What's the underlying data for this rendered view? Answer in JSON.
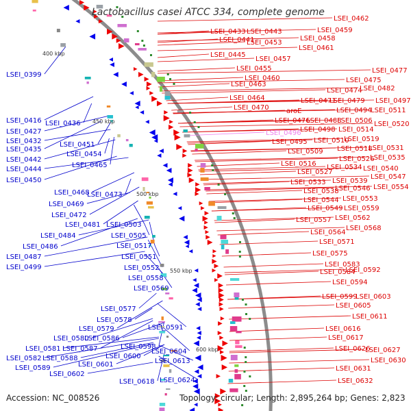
{
  "title": "Lactobacillus casei ATCC 334, complete genome",
  "footer": {
    "accession": "Accession: NC_008526",
    "stats": "Topology: circular; Length: 2,895,264 bp; Genes: 2,823"
  },
  "colors": {
    "right_label": "#dd0000",
    "left_label": "#0000cc",
    "highlight_label": "#ee82ee",
    "backbone": "#8c8c8c",
    "forward_feature": "#ee0000",
    "reverse_feature": "#0000ee"
  },
  "scale_labels": [
    "400 kbp",
    "450 kbp",
    "500 kbp",
    "550 kbp",
    "600 kbp"
  ],
  "right_labels": [
    "LSEI_0462",
    "LSEI_0433",
    "LSEI_0443",
    "LSEI_0459",
    "LSEI_0441",
    "LSEI_0453",
    "LSEI_0458",
    "LSEI_0461",
    "LSEI_0445",
    "LSEI_0457",
    "LSEI_0455",
    "LSEI_0460",
    "LSEI_0463",
    "LSEI_0464",
    "LSEI_0477",
    "LSEI_0475",
    "LSEI_0474",
    "LSEI_0482",
    "LSEI_0471",
    "LSEI_0479",
    "LSEI_0497",
    "LSEI_0470",
    "LSEI_0494",
    "LSEI_0511",
    "aroE",
    "LSEI_0476",
    "LSEI_0488",
    "LSEI_0506",
    "LSEI_0520",
    "LSEI_0496",
    "LSEI_0498",
    "LSEI_0514",
    "LSEI_0519",
    "LSEI_0510",
    "LSEI_0495",
    "LSEI_0518",
    "LSEI_0531",
    "LSEI_0509",
    "LSEI_0526",
    "LSEI_0535",
    "LSEI_0516",
    "LSEI_0534",
    "LSEI_0540",
    "LSEI_0527",
    "LSEI_0547",
    "LSEI_0533",
    "LSEI_0539",
    "LSEI_0554",
    "LSEI_0538",
    "LSEI_0546",
    "LSEI_0544",
    "LSEI_0553",
    "LSEI_0549",
    "LSEI_0559",
    "LSEI_0562",
    "LSEI_0557",
    "LSEI_0568",
    "LSEI_0564",
    "LSEI_0571",
    "LSEI_0575",
    "LSEI_0583",
    "LSEI_0584",
    "LSEI_0592",
    "LSEI_0594",
    "LSEI_0599",
    "LSEI_0603",
    "LSEI_0605",
    "LSEI_0611",
    "LSEI_0616",
    "LSEI_0617",
    "LSEI_0626",
    "LSEI_0627",
    "LSEI_0630",
    "LSEI_0631",
    "LSEI_0632"
  ],
  "highlighted_right_label": "LSEI_0496",
  "left_labels": [
    "LSEI_0399",
    "LSEI_0416",
    "LSEI_0436",
    "LSEI_0427",
    "LSEI_0432",
    "LSEI_0435",
    "LSEI_0451",
    "LSEI_0442",
    "LSEI_0454",
    "LSEI_0444",
    "LSEI_0465",
    "LSEI_0450",
    "LSEI_0468",
    "LSEI_0473",
    "LSEI_0469",
    "LSEI_0472",
    "LSEI_0481",
    "LSEI_0503",
    "LSEI_0484",
    "LSEI_0505",
    "LSEI_0486",
    "LSEI_0517",
    "LSEI_0487",
    "LSEI_0499",
    "LSEI_0551",
    "LSEI_0552",
    "LSEI_0558",
    "LSEI_0569",
    "LSEI_0577",
    "LSEI_0578",
    "LSEI_0579",
    "LSEI_0591",
    "LSEI_0580",
    "LSEI_0586",
    "LSEI_0581",
    "LSEI_0587",
    "LSEI_0598",
    "LSEI_0582",
    "LSEI_0588",
    "LSEI_0600",
    "LSEI_0604",
    "LSEI_0589",
    "LSEI_0601",
    "LSEI_0613",
    "LSEI_0602",
    "LSEI_0618",
    "LSEI_0624"
  ]
}
